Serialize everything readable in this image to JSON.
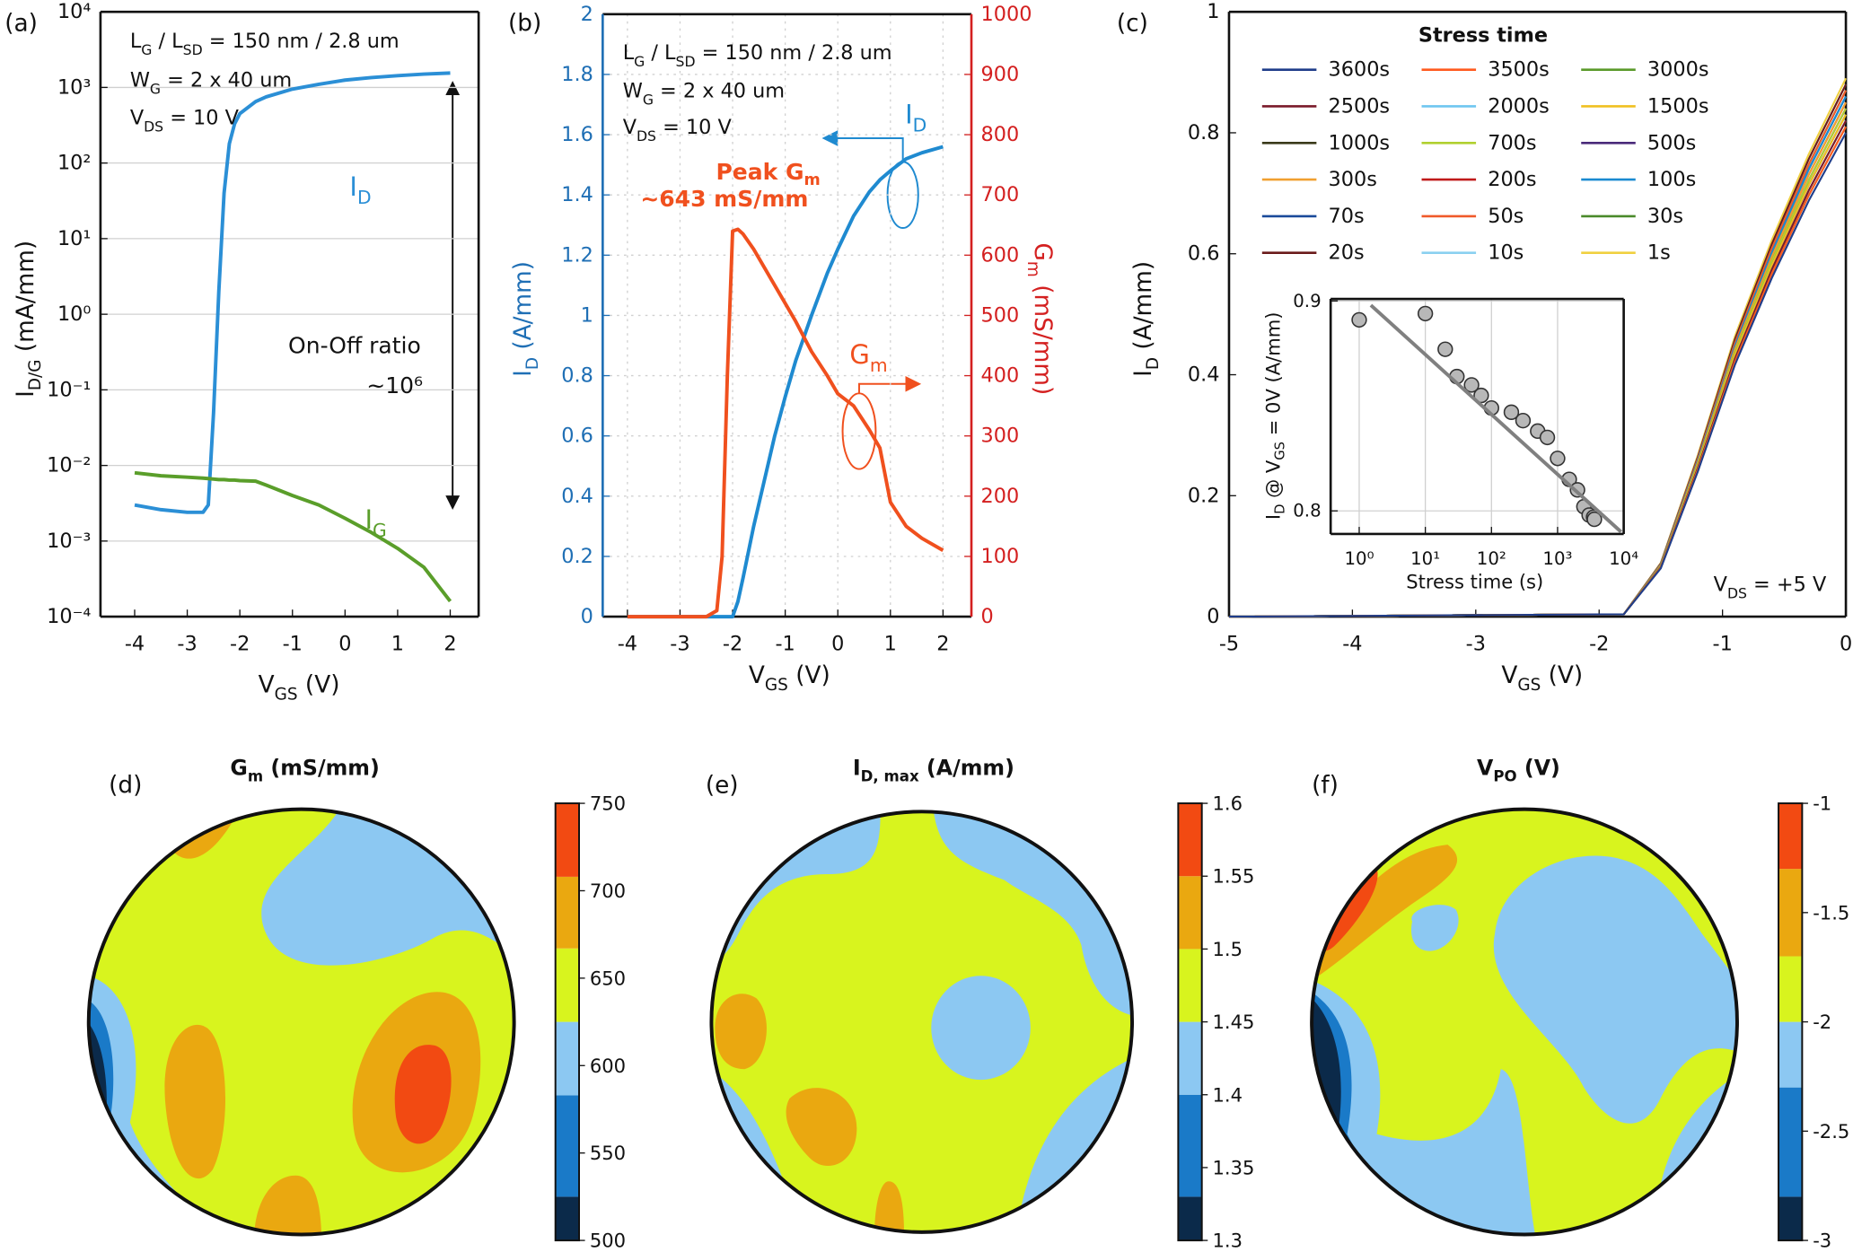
{
  "chart_data": [
    {
      "type": "line",
      "panel": "(a)",
      "log_y": true,
      "grid": "y",
      "annotations": [
        {
          "text": [
            "L",
            {
              "sub": "G"
            },
            " / L",
            {
              "sub": "SD"
            },
            " = 150 nm / 2.8 um"
          ]
        },
        {
          "text": [
            "W",
            {
              "sub": "G"
            },
            " = 2 x 40 um"
          ]
        },
        {
          "text": [
            "V",
            {
              "sub": "DS"
            },
            " = 10 V"
          ]
        },
        {
          "text": [
            "On-Off ratio"
          ]
        },
        {
          "text": [
            "~10⁶"
          ]
        }
      ],
      "xlabel": [
        "V",
        {
          "sub": "GS"
        },
        " (V)"
      ],
      "ylabel": [
        "I",
        {
          "sub": "D/G"
        },
        " (mA/mm)"
      ],
      "x": [
        -4,
        -3.5,
        -3,
        -2.7,
        -2.6,
        -2.5,
        -2.4,
        -2.3,
        -2.2,
        -2.1,
        -2,
        -1.7,
        -1.5,
        -1,
        -0.5,
        0,
        0.5,
        1,
        1.5,
        2
      ],
      "xlim": [
        -4.65,
        2.54
      ],
      "xticks": [
        -4,
        -3,
        -2,
        -1,
        0,
        1,
        2
      ],
      "ylim": [
        0.0001,
        10000
      ],
      "yticks": [
        {
          "value": 0.0001,
          "label": "10⁻⁴"
        },
        {
          "value": 0.001,
          "label": "10⁻³"
        },
        {
          "value": 0.01,
          "label": "10⁻²"
        },
        {
          "value": 0.1,
          "label": "10⁻¹"
        },
        {
          "value": 1,
          "label": "10⁰"
        },
        {
          "value": 10,
          "label": "10¹"
        },
        {
          "value": 100,
          "label": "10²"
        },
        {
          "value": 1000,
          "label": "10³"
        },
        {
          "value": 10000,
          "label": "10⁴"
        }
      ],
      "series": [
        {
          "name": [
            "I",
            {
              "sub": "D"
            }
          ],
          "color": "#2b8fd6",
          "values": [
            0.003,
            0.0026,
            0.0024,
            0.0024,
            0.003,
            0.05,
            2,
            40,
            180,
            330,
            450,
            650,
            750,
            950,
            1100,
            1250,
            1350,
            1430,
            1500,
            1550
          ]
        },
        {
          "name": [
            "I",
            {
              "sub": "G"
            }
          ],
          "color": "#5a9e2a",
          "values": [
            0.008,
            0.0073,
            0.007,
            0.0068,
            0.0067,
            0.0066,
            0.0065,
            0.0065,
            0.0064,
            0.0064,
            0.0063,
            0.0062,
            0.0055,
            0.004,
            0.003,
            0.002,
            0.0013,
            0.0008,
            0.00045,
            0.00016
          ]
        }
      ]
    },
    {
      "type": "line",
      "panel": "(b)",
      "grid": "both",
      "y_color": "#1f6fb5",
      "y2_color": "#d42020",
      "annotations": [
        {
          "text": [
            "L",
            {
              "sub": "G"
            },
            " / L",
            {
              "sub": "SD"
            },
            " = 150 nm / 2.8 um"
          ]
        },
        {
          "text": [
            "W",
            {
              "sub": "G"
            },
            " = 2 x 40 um"
          ]
        },
        {
          "text": [
            "V",
            {
              "sub": "DS"
            },
            " = 10 V"
          ]
        },
        {
          "text": [
            "Peak G",
            {
              "sub": "m"
            }
          ],
          "color": "#f0501e"
        },
        {
          "text": [
            "~643 mS/mm"
          ],
          "color": "#f0501e"
        }
      ],
      "xlabel": [
        "V",
        {
          "sub": "GS"
        },
        " (V)"
      ],
      "ylabel": [
        "I",
        {
          "sub": "D"
        },
        " (A/mm)"
      ],
      "y2label": [
        "G",
        {
          "sub": "m"
        },
        " (mS/mm)"
      ],
      "x": [
        -4,
        -3,
        -2.5,
        -2.3,
        -2.2,
        -2.1,
        -2,
        -1.9,
        -1.8,
        -1.6,
        -1.4,
        -1.2,
        -1,
        -0.8,
        -0.5,
        -0.2,
        0,
        0.3,
        0.6,
        0.8,
        1,
        1.3,
        1.6,
        2
      ],
      "xlim": [
        -4.47,
        2.54
      ],
      "xticks": [
        -4,
        -3,
        -2,
        -1,
        0,
        1,
        2
      ],
      "ylim": [
        0,
        2
      ],
      "yticks": [
        0,
        0.2,
        0.4,
        0.6,
        0.8,
        1,
        1.2,
        1.4,
        1.6,
        1.8,
        2
      ],
      "y2lim": [
        0,
        1000
      ],
      "y2ticks": [
        0,
        100,
        200,
        300,
        400,
        500,
        600,
        700,
        800,
        900,
        1000
      ],
      "series": [
        {
          "name": [
            "I",
            {
              "sub": "D"
            }
          ],
          "color": "#1f8ad0",
          "values": [
            0,
            0,
            0,
            0,
            0,
            0,
            0,
            0.05,
            0.13,
            0.3,
            0.45,
            0.6,
            0.73,
            0.85,
            1.0,
            1.14,
            1.22,
            1.33,
            1.41,
            1.45,
            1.48,
            1.52,
            1.54,
            1.56
          ]
        },
        {
          "name": [
            "G",
            {
              "sub": "m"
            }
          ],
          "color": "#f0501e",
          "axis": "y2",
          "values": [
            0,
            0,
            0,
            10,
            100,
            400,
            640,
            643,
            635,
            610,
            580,
            550,
            520,
            490,
            440,
            400,
            370,
            350,
            310,
            280,
            190,
            150,
            130,
            110
          ]
        }
      ]
    },
    {
      "type": "line",
      "panel": "(c)",
      "legend_title": "Stress time",
      "annotations": [
        {
          "text": [
            "V",
            {
              "sub": "DS"
            },
            " = +5 V"
          ]
        }
      ],
      "xlabel": [
        "V",
        {
          "sub": "GS"
        },
        " (V)"
      ],
      "ylabel": [
        "I",
        {
          "sub": "D"
        },
        " (A/mm)"
      ],
      "x": [
        -5,
        -1.8,
        -1.5,
        -1.2,
        -0.9,
        -0.6,
        -0.3,
        0
      ],
      "xlim": [
        -5,
        0
      ],
      "xticks": [
        -5,
        -4,
        -3,
        -2,
        -1,
        0
      ],
      "ylim": [
        0,
        1
      ],
      "yticks": [
        0,
        0.2,
        0.4,
        0.6,
        0.8,
        1
      ],
      "series": [
        {
          "name": "3600s",
          "color": "#1f3d8a",
          "values": [
            0,
            0.004,
            0.08,
            0.24,
            0.416,
            0.56,
            0.688,
            0.8
          ]
        },
        {
          "name": "3500s",
          "color": "#ff5a1f",
          "values": [
            0,
            0.004,
            0.081,
            0.243,
            0.421,
            0.567,
            0.697,
            0.81
          ]
        },
        {
          "name": "3000s",
          "color": "#5a9a2a",
          "values": [
            0,
            0.004,
            0.081,
            0.243,
            0.421,
            0.567,
            0.697,
            0.81
          ]
        },
        {
          "name": "2500s",
          "color": "#7a1a2a",
          "values": [
            0,
            0.004,
            0.082,
            0.246,
            0.426,
            0.574,
            0.705,
            0.82
          ]
        },
        {
          "name": "2000s",
          "color": "#6ec6f0",
          "values": [
            0,
            0.004,
            0.082,
            0.246,
            0.426,
            0.574,
            0.705,
            0.82
          ]
        },
        {
          "name": "1500s",
          "color": "#f0c020",
          "values": [
            0,
            0.004,
            0.083,
            0.249,
            0.432,
            0.581,
            0.714,
            0.83
          ]
        },
        {
          "name": "1000s",
          "color": "#3a3a1a",
          "values": [
            0,
            0.004,
            0.083,
            0.249,
            0.432,
            0.581,
            0.714,
            0.83
          ]
        },
        {
          "name": "700s",
          "color": "#b0d030",
          "values": [
            0,
            0.004,
            0.084,
            0.252,
            0.437,
            0.588,
            0.722,
            0.84
          ]
        },
        {
          "name": "500s",
          "color": "#4a2a7a",
          "values": [
            0,
            0.004,
            0.084,
            0.252,
            0.437,
            0.588,
            0.722,
            0.84
          ]
        },
        {
          "name": "300s",
          "color": "#f0a030",
          "values": [
            0,
            0.004,
            0.085,
            0.255,
            0.442,
            0.595,
            0.731,
            0.85
          ]
        },
        {
          "name": "200s",
          "color": "#c01a1a",
          "values": [
            0,
            0.004,
            0.085,
            0.255,
            0.442,
            0.595,
            0.731,
            0.85
          ]
        },
        {
          "name": "100s",
          "color": "#1a8ad0",
          "values": [
            0,
            0.004,
            0.086,
            0.258,
            0.447,
            0.602,
            0.74,
            0.86
          ]
        },
        {
          "name": "70s",
          "color": "#1a4a9a",
          "values": [
            0,
            0.004,
            0.086,
            0.258,
            0.447,
            0.602,
            0.74,
            0.86
          ]
        },
        {
          "name": "50s",
          "color": "#f05a2a",
          "values": [
            0,
            0.004,
            0.087,
            0.261,
            0.452,
            0.609,
            0.748,
            0.87
          ]
        },
        {
          "name": "30s",
          "color": "#4a8a2a",
          "values": [
            0,
            0.004,
            0.087,
            0.261,
            0.452,
            0.609,
            0.748,
            0.87
          ]
        },
        {
          "name": "20s",
          "color": "#6a1a1a",
          "values": [
            0,
            0.004,
            0.088,
            0.264,
            0.458,
            0.616,
            0.757,
            0.88
          ]
        },
        {
          "name": "10s",
          "color": "#8ad0f0",
          "values": [
            0,
            0.004,
            0.088,
            0.264,
            0.458,
            0.616,
            0.757,
            0.88
          ]
        },
        {
          "name": "1s",
          "color": "#f0d040",
          "values": [
            0,
            0.004,
            0.089,
            0.267,
            0.463,
            0.623,
            0.765,
            0.89
          ]
        }
      ]
    },
    {
      "type": "scatter",
      "log_x": true,
      "grid": "both",
      "xlabel": [
        "Stress time (s)"
      ],
      "ylabel": [
        "I",
        {
          "sub": "D"
        },
        " @ V",
        {
          "sub": "GS"
        },
        " = 0V (A/mm)"
      ],
      "xlim": [
        0.37,
        10000
      ],
      "xticks": [
        {
          "value": 1,
          "label": "10⁰"
        },
        {
          "value": 10,
          "label": "10¹"
        },
        {
          "value": 100,
          "label": "10²"
        },
        {
          "value": 1000,
          "label": "10³"
        },
        {
          "value": 10000,
          "label": "10⁴"
        }
      ],
      "ylim": [
        0.789,
        0.901
      ],
      "yticks": [
        0.8,
        0.9
      ],
      "series": [
        {
          "color": "#b8b8b8",
          "x": [
            1,
            10,
            20,
            30,
            50,
            70,
            100,
            200,
            300,
            500,
            700,
            1000,
            1500,
            2000,
            2500,
            3000,
            3500,
            3600
          ],
          "values": [
            0.891,
            0.894,
            0.877,
            0.864,
            0.86,
            0.855,
            0.849,
            0.847,
            0.843,
            0.838,
            0.835,
            0.825,
            0.815,
            0.81,
            0.802,
            0.798,
            0.797,
            0.796
          ]
        },
        {
          "type": "line",
          "color": "#808080",
          "x": [
            1.5,
            9120
          ],
          "values": [
            0.898,
            0.79
          ]
        }
      ]
    },
    {
      "type": "contour",
      "panel": "(d)",
      "title": [
        "G",
        {
          "sub": "m"
        },
        " (mS/mm)"
      ],
      "levels": [
        500,
        525,
        583,
        625,
        667,
        708,
        750
      ],
      "colors": [
        "#0b2a4a",
        "#1a7ac8",
        "#8cc8f2",
        "#d8f41e",
        "#eaa810",
        "#f24a12"
      ],
      "ylim": [
        500,
        750
      ],
      "yticks": [
        500,
        550,
        600,
        650,
        700,
        750
      ]
    },
    {
      "type": "contour",
      "panel": "(e)",
      "title": [
        "I",
        {
          "sub": "D, max"
        },
        " (A/mm)"
      ],
      "levels": [
        1.3,
        1.33,
        1.4,
        1.45,
        1.5,
        1.55,
        1.6
      ],
      "colors": [
        "#0b2a4a",
        "#1a7ac8",
        "#8cc8f2",
        "#d8f41e",
        "#eaa810",
        "#f24a12"
      ],
      "ylim": [
        1.3,
        1.6
      ],
      "yticks": [
        1.3,
        1.35,
        1.4,
        1.45,
        1.5,
        1.55,
        1.6
      ]
    },
    {
      "type": "contour",
      "panel": "(f)",
      "title": [
        "V",
        {
          "sub": "PO"
        },
        " (V)"
      ],
      "levels": [
        -3,
        -2.8,
        -2.3,
        -2,
        -1.7,
        -1.3,
        -1
      ],
      "colors": [
        "#0b2a4a",
        "#1a7ac8",
        "#8cc8f2",
        "#d8f41e",
        "#eaa810",
        "#f24a12"
      ],
      "ylim": [
        -3,
        -1
      ],
      "yticks": [
        -3,
        -2.5,
        -2,
        -1.5,
        -1
      ]
    }
  ]
}
